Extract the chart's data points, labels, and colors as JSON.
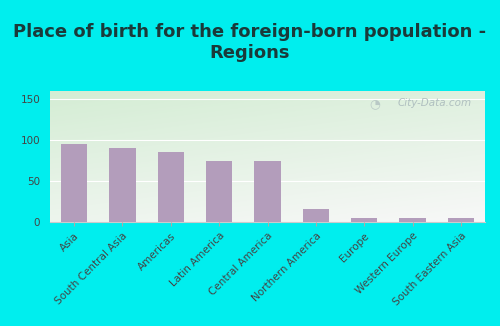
{
  "title": "Place of birth for the foreign-born population -\nRegions",
  "categories": [
    "Asia",
    "South Central Asia",
    "Americas",
    "Latin America",
    "Central America",
    "Northern America",
    "Europe",
    "Western Europe",
    "South Eastern Asia"
  ],
  "values": [
    95,
    91,
    86,
    75,
    75,
    16,
    4,
    4,
    4
  ],
  "bar_color": "#b39dbb",
  "background_outer": "#00eeee",
  "ylim": [
    0,
    160
  ],
  "yticks": [
    0,
    50,
    100,
    150
  ],
  "watermark": "City-Data.com",
  "title_fontsize": 13,
  "tick_fontsize": 7.5,
  "title_color": "#1a3a3a"
}
